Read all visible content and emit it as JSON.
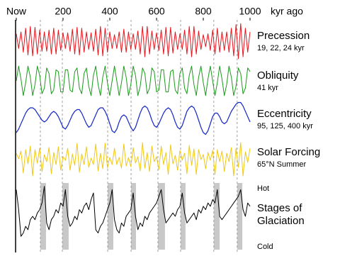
{
  "chart_data": {
    "type": "line",
    "xlim": [
      0,
      1000
    ],
    "xticks": [
      {
        "value": 0,
        "label": "Now"
      },
      200,
      400,
      600,
      800,
      1000
    ],
    "xlabel": "kyr ago",
    "x": [
      0,
      10,
      20,
      30,
      40,
      50,
      60,
      70,
      80,
      90,
      100,
      110,
      120,
      130,
      140,
      150,
      160,
      170,
      180,
      190,
      200,
      210,
      220,
      230,
      240,
      250,
      260,
      270,
      280,
      290,
      300,
      310,
      320,
      330,
      340,
      350,
      360,
      370,
      380,
      390,
      400,
      410,
      420,
      430,
      440,
      450,
      460,
      470,
      480,
      490,
      500,
      510,
      520,
      530,
      540,
      550,
      560,
      570,
      580,
      590,
      600,
      610,
      620,
      630,
      640,
      650,
      660,
      670,
      680,
      690,
      700,
      710,
      720,
      730,
      740,
      750,
      760,
      770,
      780,
      790,
      800,
      810,
      820,
      830,
      840,
      850,
      860,
      870,
      880,
      890,
      900,
      910,
      920,
      930,
      940,
      950,
      960,
      970,
      980,
      990,
      1000
    ],
    "shaded": [
      [
        103,
        127
      ],
      [
        197,
        224
      ],
      [
        391,
        415
      ],
      [
        491,
        512
      ],
      [
        606,
        636
      ],
      [
        703,
        724
      ],
      [
        845,
        870
      ],
      [
        945,
        967
      ]
    ],
    "shade_color": "#c8c8c8",
    "series": [
      {
        "name": "Precession",
        "subtitle": "19, 22, 24 kyr",
        "color": "#e8141c",
        "ylim": [
          -1,
          1
        ],
        "values": [
          0.4,
          -0.4,
          0.5,
          -0.6,
          0.7,
          -0.75,
          0.8,
          -0.8,
          0.75,
          -0.7,
          0.6,
          -0.55,
          0.5,
          -0.55,
          0.6,
          -0.7,
          0.7,
          -0.7,
          0.6,
          -0.5,
          0.45,
          -0.4,
          0.45,
          -0.55,
          0.65,
          -0.7,
          0.75,
          -0.75,
          0.7,
          -0.6,
          0.5,
          -0.45,
          0.45,
          -0.55,
          0.65,
          -0.75,
          0.8,
          -0.8,
          0.7,
          -0.6,
          0.5,
          -0.4,
          0.35,
          -0.4,
          0.5,
          -0.6,
          0.65,
          -0.6,
          0.5,
          -0.45,
          0.4,
          -0.45,
          0.55,
          -0.7,
          0.8,
          -0.85,
          0.8,
          -0.7,
          0.55,
          -0.45,
          0.45,
          -0.5,
          0.6,
          -0.7,
          0.75,
          -0.8,
          0.75,
          -0.65,
          0.5,
          -0.45,
          0.4,
          -0.45,
          0.6,
          -0.7,
          0.8,
          -0.85,
          0.8,
          -0.7,
          0.55,
          -0.45,
          0.35,
          -0.3,
          0.4,
          -0.5,
          0.6,
          -0.7,
          0.7,
          -0.6,
          0.5,
          -0.5,
          0.5,
          -0.6,
          0.7,
          -0.8,
          0.9,
          -0.95,
          0.95,
          -0.85,
          0.7,
          -0.6,
          0.5
        ]
      },
      {
        "name": "Obliquity",
        "subtitle": "41 kyr",
        "color": "#1a9a1a",
        "ylim": [
          -1,
          1
        ],
        "values": [
          0,
          0.8,
          0.1,
          -0.8,
          -0.1,
          0.8,
          0.2,
          -0.8,
          -0.2,
          0.8,
          0.3,
          -0.7,
          -0.4,
          0.7,
          0.4,
          -0.7,
          -0.5,
          0.6,
          0.5,
          -0.6,
          -0.6,
          0.6,
          0.6,
          -0.5,
          -0.6,
          0.5,
          0.7,
          -0.4,
          -0.7,
          0.4,
          0.7,
          -0.3,
          -0.8,
          0.3,
          0.8,
          -0.2,
          -0.8,
          0.2,
          0.8,
          -0.1,
          -0.8,
          0,
          0.8,
          0,
          -0.8,
          -0.1,
          0.8,
          0.2,
          -0.8,
          -0.2,
          0.8,
          0.3,
          -0.8,
          -0.3,
          0.7,
          0.4,
          -0.7,
          -0.4,
          0.7,
          0.5,
          -0.6,
          -0.5,
          0.6,
          0.6,
          -0.6,
          -0.6,
          0.5,
          0.6,
          -0.5,
          -0.7,
          0.4,
          0.7,
          -0.4,
          -0.7,
          0.3,
          0.8,
          -0.2,
          -0.8,
          0.2,
          0.8,
          -0.1,
          -0.8,
          0.1,
          0.8,
          0,
          -0.8,
          -0.1,
          0.8,
          0.1,
          -0.8,
          -0.2,
          0.8,
          0.2,
          -0.8,
          -0.3,
          0.7,
          0.4,
          -0.7,
          -0.4,
          0.7,
          0.5
        ]
      },
      {
        "name": "Eccentricity",
        "subtitle": "95, 125, 400 kyr",
        "color": "#1428c8",
        "ylim": [
          -1,
          1
        ],
        "values": [
          -0.8,
          -0.6,
          -0.3,
          0.0,
          0.3,
          0.5,
          0.6,
          0.6,
          0.5,
          0.3,
          0.1,
          -0.1,
          -0.2,
          -0.1,
          0.1,
          0.3,
          0.4,
          0.3,
          0.1,
          -0.2,
          -0.5,
          -0.6,
          -0.4,
          -0.1,
          0.2,
          0.4,
          0.5,
          0.5,
          0.3,
          0.0,
          -0.3,
          -0.5,
          -0.4,
          -0.1,
          0.2,
          0.5,
          0.6,
          0.6,
          0.4,
          0.1,
          -0.3,
          -0.7,
          -0.8,
          -0.6,
          -0.2,
          0.1,
          0.2,
          0.1,
          -0.2,
          -0.5,
          -0.7,
          -0.5,
          -0.1,
          0.3,
          0.6,
          0.7,
          0.6,
          0.3,
          -0.1,
          -0.4,
          -0.5,
          -0.3,
          0.0,
          0.3,
          0.5,
          0.6,
          0.5,
          0.2,
          -0.2,
          -0.5,
          -0.6,
          -0.4,
          0.0,
          0.4,
          0.6,
          0.7,
          0.6,
          0.3,
          -0.1,
          -0.5,
          -0.8,
          -0.9,
          -0.7,
          -0.3,
          0.1,
          0.3,
          0.3,
          0.1,
          -0.2,
          -0.3,
          -0.2,
          0.1,
          0.4,
          0.6,
          0.8,
          0.9,
          0.9,
          0.7,
          0.4,
          0.1,
          -0.2
        ]
      },
      {
        "name": "Solar Forcing",
        "subtitle": "65°N Summer",
        "color": "#f0c814",
        "ylim": [
          -1.4,
          1.4
        ],
        "values": [
          0.4,
          0,
          0.55,
          -1.0,
          0.65,
          -0.35,
          0.9,
          -1.2,
          0.65,
          -0.3,
          0.75,
          -0.9,
          0.3,
          -0.2,
          0.8,
          -1.05,
          0.45,
          -0.4,
          0.85,
          -0.8,
          0.15,
          -0.1,
          0.75,
          -0.8,
          0.35,
          -0.45,
          1.1,
          -0.95,
          0.35,
          -0.4,
          0.85,
          -0.6,
          0.05,
          -0.4,
          1.05,
          -0.85,
          0.4,
          -0.7,
          1.1,
          -0.65,
          0.1,
          -0.4,
          0.75,
          -0.4,
          0.1,
          -0.65,
          1.05,
          -0.5,
          0.1,
          -0.55,
          0.8,
          -0.3,
          0.15,
          -0.85,
          1.15,
          -0.65,
          0.45,
          -0.9,
          0.9,
          -0.2,
          0.15,
          -0.75,
          0.9,
          -0.4,
          0.45,
          -1.1,
          1.0,
          -0.35,
          0.25,
          -0.8,
          0.6,
          -0.1,
          0.4,
          -1.05,
          0.95,
          -0.45,
          0.7,
          -1.1,
          0.65,
          -0.05,
          0.3,
          -0.7,
          0.45,
          -0.1,
          0.6,
          -1.1,
          0.65,
          -0.2,
          0.55,
          -0.9,
          0.4,
          -0.2,
          0.8,
          -1.2,
          0.75,
          -0.6,
          1.15,
          -1.2,
          0.5,
          -0.25,
          0.75
        ]
      },
      {
        "name": "Stages of Glaciation",
        "top_label": "Hot",
        "bottom_label": "Cold",
        "color": "#000000",
        "ylim": [
          0,
          1
        ],
        "values": [
          0.9,
          0.6,
          0.2,
          0.25,
          0.35,
          0.3,
          0.45,
          0.5,
          0.45,
          0.55,
          0.6,
          0.7,
          0.95,
          0.4,
          0.3,
          0.45,
          0.5,
          0.6,
          0.55,
          0.7,
          0.65,
          0.9,
          0.5,
          0.35,
          0.4,
          0.5,
          0.45,
          0.6,
          0.55,
          0.65,
          0.7,
          0.6,
          0.75,
          0.85,
          0.3,
          0.25,
          0.35,
          0.4,
          0.5,
          0.6,
          0.7,
          0.9,
          0.45,
          0.3,
          0.25,
          0.4,
          0.35,
          0.5,
          0.55,
          0.6,
          0.85,
          0.5,
          0.3,
          0.4,
          0.35,
          0.5,
          0.45,
          0.55,
          0.6,
          0.65,
          0.7,
          0.8,
          0.9,
          0.6,
          0.4,
          0.45,
          0.5,
          0.55,
          0.5,
          0.6,
          0.65,
          0.85,
          0.55,
          0.4,
          0.45,
          0.5,
          0.55,
          0.45,
          0.6,
          0.55,
          0.65,
          0.6,
          0.7,
          0.65,
          0.75,
          0.7,
          0.9,
          0.5,
          0.45,
          0.5,
          0.55,
          0.6,
          0.65,
          0.7,
          0.75,
          0.8,
          0.9,
          0.6,
          0.5,
          0.7,
          0.65
        ]
      }
    ]
  }
}
